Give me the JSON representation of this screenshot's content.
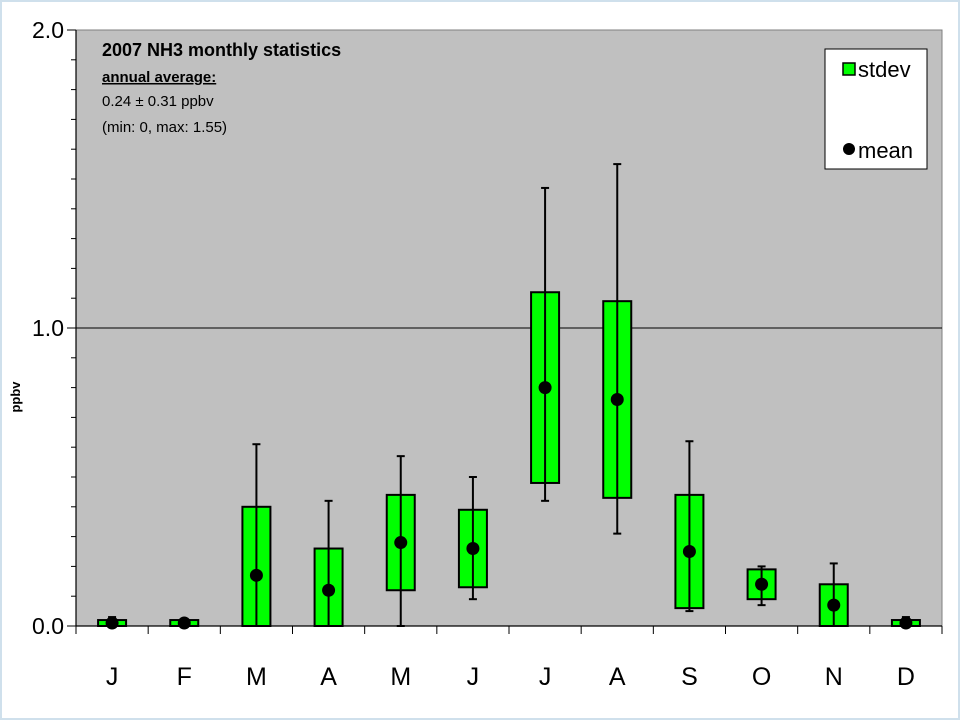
{
  "chart_data": {
    "type": "boxplot",
    "title": "2007 NH3 monthly statistics",
    "annotation": {
      "subtitle": "annual average:",
      "line1": "0.24 ± 0.31 ppbv",
      "line2": "(min: 0, max: 1.55)"
    },
    "xlabel": "",
    "ylabel": "ppbv",
    "ylim": [
      0,
      2.0
    ],
    "yticks": [
      "0.0",
      "1.0",
      "2.0"
    ],
    "ytick_values": [
      0,
      1,
      2
    ],
    "grid": "major gridline at 1.0",
    "legend": {
      "position": "top-right",
      "stdev_label": "stdev",
      "mean_label": "mean"
    },
    "categories": [
      "J",
      "F",
      "M",
      "A",
      "M",
      "J",
      "J",
      "A",
      "S",
      "O",
      "N",
      "D"
    ],
    "mean": [
      0.01,
      0.01,
      0.17,
      0.12,
      0.28,
      0.26,
      0.8,
      0.76,
      0.25,
      0.14,
      0.07,
      0.01
    ],
    "stdev_low": [
      0.0,
      0.0,
      0.0,
      0.0,
      0.12,
      0.13,
      0.48,
      0.43,
      0.06,
      0.09,
      0.0,
      0.0
    ],
    "stdev_high": [
      0.02,
      0.02,
      0.4,
      0.26,
      0.44,
      0.39,
      1.12,
      1.09,
      0.44,
      0.19,
      0.14,
      0.02
    ],
    "min": [
      0.0,
      0.0,
      0.0,
      0.0,
      0.0,
      0.09,
      0.42,
      0.31,
      0.05,
      0.07,
      0.0,
      0.0
    ],
    "max": [
      0.03,
      0.02,
      0.61,
      0.42,
      0.57,
      0.5,
      1.47,
      1.55,
      0.62,
      0.2,
      0.21,
      0.03
    ],
    "colors": {
      "plot_background": "#c0c0c0",
      "box_fill": "#00ff00",
      "box_stroke": "#000000",
      "mean_marker": "#000000",
      "gridline": "#000000"
    }
  }
}
